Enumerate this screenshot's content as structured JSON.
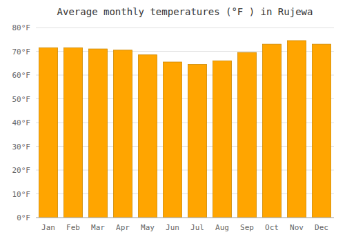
{
  "chart_data": {
    "type": "bar",
    "title": "Average monthly temperatures (°F ) in Rujewa",
    "categories": [
      "Jan",
      "Feb",
      "Mar",
      "Apr",
      "May",
      "Jun",
      "Jul",
      "Aug",
      "Sep",
      "Oct",
      "Nov",
      "Dec"
    ],
    "values": [
      71.5,
      71.5,
      71.0,
      70.5,
      68.5,
      65.5,
      64.5,
      66.0,
      69.5,
      73.0,
      74.5,
      73.0
    ],
    "color": "#FFA500",
    "ylim": [
      0,
      80
    ],
    "yticks": [
      {
        "value": 0,
        "label": "0°F"
      },
      {
        "value": 10,
        "label": "10°F"
      },
      {
        "value": 20,
        "label": "20°F"
      },
      {
        "value": 30,
        "label": "30°F"
      },
      {
        "value": 40,
        "label": "40°F"
      },
      {
        "value": 50,
        "label": "50°F"
      },
      {
        "value": 60,
        "label": "60°F"
      },
      {
        "value": 70,
        "label": "70°F"
      },
      {
        "value": 80,
        "label": "80°F"
      }
    ],
    "grid": true
  }
}
